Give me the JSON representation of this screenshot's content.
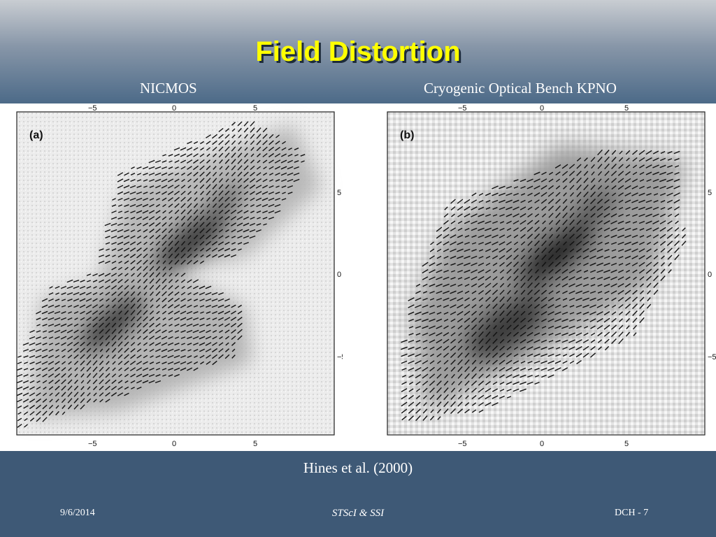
{
  "slide": {
    "title": "Field Distortion",
    "left_caption": "NICMOS",
    "right_caption": "Cryogenic Optical Bench KPNO",
    "citation": "Hines et al. (2000)",
    "footer_date": "9/6/2014",
    "footer_center": "STScI & SSI",
    "footer_page": "DCH - 7"
  },
  "panels": [
    {
      "label": "(a)",
      "ticks": [
        "−5",
        "0",
        "5"
      ]
    },
    {
      "label": "(b)",
      "ticks": [
        "−5",
        "0",
        "5"
      ]
    }
  ]
}
